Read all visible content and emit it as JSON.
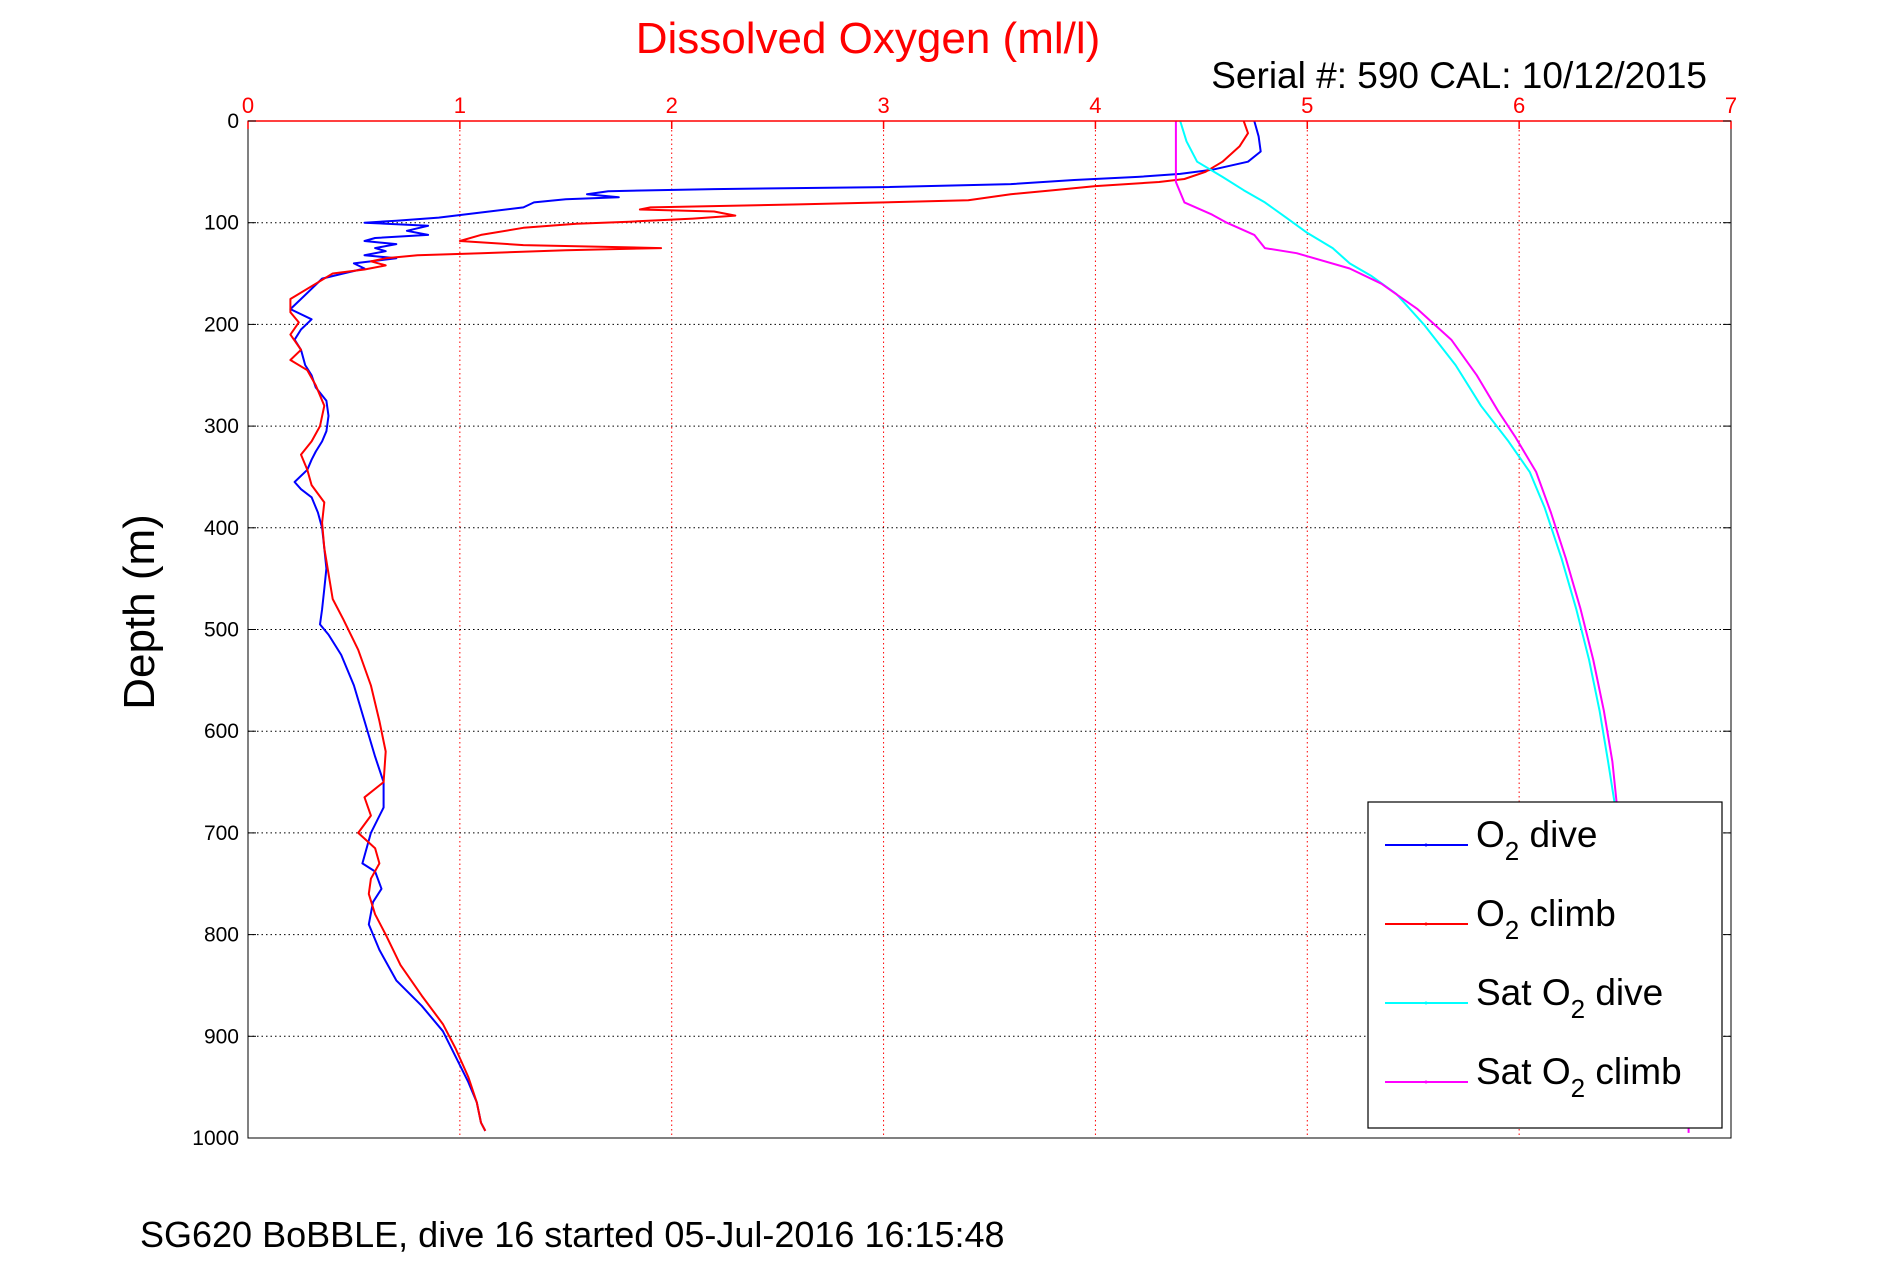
{
  "chart_data": {
    "type": "line",
    "title": "Dissolved Oxygen (ml/l)",
    "subtitle": "Serial #: 590  CAL: 10/12/2015",
    "ylabel": "Depth (m)",
    "footer": "SG620 BoBBLE, dive 16 started 05-Jul-2016 16:15:48",
    "xlim": [
      0,
      7
    ],
    "ylim": [
      0,
      1000
    ],
    "y_reversed": true,
    "x_ticks": [
      0,
      1,
      2,
      3,
      4,
      5,
      6,
      7
    ],
    "y_ticks": [
      0,
      100,
      200,
      300,
      400,
      500,
      600,
      700,
      800,
      900,
      1000
    ],
    "x_axis_position": "top",
    "grid": true,
    "legend": {
      "placement": "bottom-right",
      "entries": [
        {
          "prefix": "O",
          "sub": "2",
          "suffix": " dive",
          "color": "#0000ff"
        },
        {
          "prefix": "O",
          "sub": "2",
          "suffix": " climb",
          "color": "#ff0000"
        },
        {
          "prefix": "Sat O",
          "sub": "2",
          "suffix": " dive",
          "color": "#00ffff"
        },
        {
          "prefix": "Sat O",
          "sub": "2",
          "suffix": " climb",
          "color": "#ff00ff"
        }
      ]
    },
    "series": [
      {
        "name": "O2 dive",
        "color": "#0000ff",
        "points": [
          [
            4.75,
            0
          ],
          [
            4.77,
            15
          ],
          [
            4.78,
            30
          ],
          [
            4.72,
            40
          ],
          [
            4.55,
            48
          ],
          [
            4.4,
            52
          ],
          [
            4.2,
            55
          ],
          [
            3.9,
            58
          ],
          [
            3.6,
            62
          ],
          [
            3.0,
            65
          ],
          [
            2.2,
            67
          ],
          [
            1.7,
            69
          ],
          [
            1.6,
            72
          ],
          [
            1.75,
            75
          ],
          [
            1.5,
            77
          ],
          [
            1.35,
            80
          ],
          [
            1.3,
            85
          ],
          [
            1.1,
            90
          ],
          [
            0.9,
            95
          ],
          [
            0.7,
            98
          ],
          [
            0.55,
            100
          ],
          [
            0.85,
            103
          ],
          [
            0.75,
            108
          ],
          [
            0.85,
            112
          ],
          [
            0.6,
            115
          ],
          [
            0.55,
            118
          ],
          [
            0.7,
            121
          ],
          [
            0.6,
            125
          ],
          [
            0.65,
            128
          ],
          [
            0.55,
            132
          ],
          [
            0.7,
            135
          ],
          [
            0.5,
            140
          ],
          [
            0.55,
            145
          ],
          [
            0.45,
            150
          ],
          [
            0.35,
            155
          ],
          [
            0.3,
            165
          ],
          [
            0.25,
            175
          ],
          [
            0.2,
            185
          ],
          [
            0.3,
            195
          ],
          [
            0.25,
            205
          ],
          [
            0.22,
            215
          ],
          [
            0.25,
            225
          ],
          [
            0.27,
            240
          ],
          [
            0.3,
            250
          ],
          [
            0.32,
            262
          ],
          [
            0.37,
            275
          ],
          [
            0.38,
            290
          ],
          [
            0.37,
            305
          ],
          [
            0.35,
            315
          ],
          [
            0.32,
            325
          ],
          [
            0.3,
            333
          ],
          [
            0.28,
            343
          ],
          [
            0.22,
            355
          ],
          [
            0.25,
            362
          ],
          [
            0.3,
            370
          ],
          [
            0.33,
            385
          ],
          [
            0.35,
            400
          ],
          [
            0.36,
            420
          ],
          [
            0.37,
            440
          ],
          [
            0.36,
            460
          ],
          [
            0.35,
            480
          ],
          [
            0.34,
            495
          ],
          [
            0.38,
            505
          ],
          [
            0.44,
            525
          ],
          [
            0.5,
            555
          ],
          [
            0.55,
            590
          ],
          [
            0.6,
            625
          ],
          [
            0.64,
            650
          ],
          [
            0.64,
            675
          ],
          [
            0.58,
            700
          ],
          [
            0.54,
            730
          ],
          [
            0.6,
            738
          ],
          [
            0.63,
            755
          ],
          [
            0.59,
            768
          ],
          [
            0.57,
            790
          ],
          [
            0.62,
            815
          ],
          [
            0.7,
            845
          ],
          [
            0.82,
            870
          ],
          [
            0.92,
            895
          ],
          [
            0.98,
            920
          ],
          [
            1.04,
            945
          ],
          [
            1.08,
            965
          ],
          [
            1.1,
            985
          ],
          [
            1.12,
            993
          ]
        ]
      },
      {
        "name": "O2 climb",
        "color": "#ff0000",
        "points": [
          [
            4.7,
            0
          ],
          [
            4.72,
            12
          ],
          [
            4.68,
            25
          ],
          [
            4.6,
            40
          ],
          [
            4.52,
            50
          ],
          [
            4.42,
            57
          ],
          [
            4.3,
            60
          ],
          [
            4.0,
            64
          ],
          [
            3.8,
            68
          ],
          [
            3.6,
            72
          ],
          [
            3.4,
            78
          ],
          [
            2.6,
            82
          ],
          [
            1.9,
            85
          ],
          [
            1.85,
            87
          ],
          [
            2.2,
            89
          ],
          [
            2.3,
            93
          ],
          [
            2.1,
            96
          ],
          [
            1.8,
            99
          ],
          [
            1.55,
            101
          ],
          [
            1.3,
            105
          ],
          [
            1.1,
            112
          ],
          [
            1.0,
            118
          ],
          [
            1.3,
            122
          ],
          [
            1.95,
            125
          ],
          [
            1.5,
            127
          ],
          [
            1.1,
            130
          ],
          [
            0.8,
            132
          ],
          [
            0.65,
            135
          ],
          [
            0.58,
            138
          ],
          [
            0.65,
            142
          ],
          [
            0.55,
            146
          ],
          [
            0.4,
            150
          ],
          [
            0.32,
            160
          ],
          [
            0.2,
            175
          ],
          [
            0.2,
            188
          ],
          [
            0.24,
            198
          ],
          [
            0.2,
            210
          ],
          [
            0.25,
            225
          ],
          [
            0.2,
            235
          ],
          [
            0.28,
            245
          ],
          [
            0.32,
            260
          ],
          [
            0.36,
            280
          ],
          [
            0.34,
            300
          ],
          [
            0.3,
            315
          ],
          [
            0.25,
            328
          ],
          [
            0.28,
            343
          ],
          [
            0.3,
            358
          ],
          [
            0.36,
            375
          ],
          [
            0.35,
            395
          ],
          [
            0.36,
            420
          ],
          [
            0.38,
            445
          ],
          [
            0.4,
            470
          ],
          [
            0.45,
            490
          ],
          [
            0.52,
            520
          ],
          [
            0.58,
            555
          ],
          [
            0.62,
            590
          ],
          [
            0.65,
            620
          ],
          [
            0.64,
            650
          ],
          [
            0.55,
            665
          ],
          [
            0.58,
            683
          ],
          [
            0.52,
            700
          ],
          [
            0.6,
            715
          ],
          [
            0.62,
            730
          ],
          [
            0.58,
            745
          ],
          [
            0.57,
            760
          ],
          [
            0.6,
            780
          ],
          [
            0.65,
            800
          ],
          [
            0.72,
            830
          ],
          [
            0.82,
            860
          ],
          [
            0.92,
            888
          ],
          [
            0.98,
            912
          ],
          [
            1.04,
            940
          ],
          [
            1.08,
            965
          ],
          [
            1.1,
            985
          ],
          [
            1.12,
            993
          ]
        ]
      },
      {
        "name": "Sat O2 dive",
        "color": "#00ffff",
        "points": [
          [
            4.4,
            0
          ],
          [
            4.43,
            20
          ],
          [
            4.48,
            40
          ],
          [
            4.6,
            55
          ],
          [
            4.7,
            68
          ],
          [
            4.8,
            80
          ],
          [
            4.9,
            95
          ],
          [
            5.0,
            110
          ],
          [
            5.12,
            125
          ],
          [
            5.2,
            140
          ],
          [
            5.3,
            152
          ],
          [
            5.42,
            170
          ],
          [
            5.55,
            200
          ],
          [
            5.7,
            240
          ],
          [
            5.82,
            280
          ],
          [
            5.95,
            315
          ],
          [
            6.05,
            345
          ],
          [
            6.12,
            380
          ],
          [
            6.2,
            430
          ],
          [
            6.27,
            480
          ],
          [
            6.33,
            530
          ],
          [
            6.38,
            580
          ],
          [
            6.42,
            630
          ],
          [
            6.45,
            670
          ]
        ]
      },
      {
        "name": "Sat O2 climb",
        "color": "#ff00ff",
        "points": [
          [
            4.38,
            0
          ],
          [
            4.38,
            20
          ],
          [
            4.38,
            40
          ],
          [
            4.38,
            60
          ],
          [
            4.42,
            80
          ],
          [
            4.55,
            92
          ],
          [
            4.62,
            100
          ],
          [
            4.75,
            112
          ],
          [
            4.8,
            125
          ],
          [
            4.95,
            130
          ],
          [
            5.2,
            145
          ],
          [
            5.35,
            160
          ],
          [
            5.52,
            185
          ],
          [
            5.68,
            215
          ],
          [
            5.8,
            250
          ],
          [
            5.9,
            285
          ],
          [
            5.98,
            310
          ],
          [
            6.08,
            345
          ],
          [
            6.15,
            385
          ],
          [
            6.22,
            430
          ],
          [
            6.29,
            480
          ],
          [
            6.35,
            530
          ],
          [
            6.4,
            580
          ],
          [
            6.44,
            630
          ],
          [
            6.46,
            670
          ],
          [
            6.8,
            990
          ],
          [
            6.8,
            995
          ]
        ]
      }
    ]
  }
}
